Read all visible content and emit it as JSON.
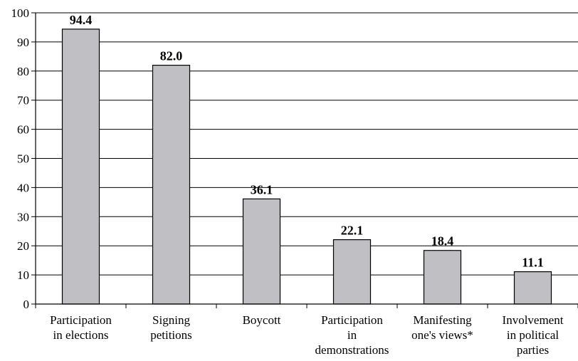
{
  "chart_data": {
    "type": "bar",
    "categories": [
      [
        "Participation",
        "in elections"
      ],
      [
        "Signing",
        "petitions"
      ],
      [
        "Boycott"
      ],
      [
        "Participation",
        "in",
        "demonstrations"
      ],
      [
        "Manifesting",
        "one's views*"
      ],
      [
        "Involvement",
        "in political",
        "parties"
      ]
    ],
    "values": [
      94.4,
      82.0,
      36.1,
      22.1,
      18.4,
      11.1
    ],
    "value_labels": [
      "94.4",
      "82.0",
      "36.1",
      "22.1",
      "18.4",
      "11.1"
    ],
    "yticks": [
      "0",
      "10",
      "20",
      "30",
      "40",
      "50",
      "60",
      "70",
      "80",
      "90",
      "100"
    ],
    "ylim": [
      0,
      100
    ],
    "grid": true,
    "bar_color": "#c0c0c4",
    "title": "",
    "xlabel": "",
    "ylabel": ""
  }
}
